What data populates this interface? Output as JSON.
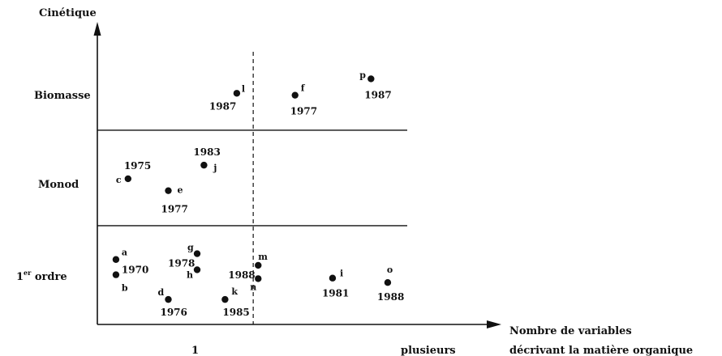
{
  "chart_data": {
    "type": "scatter",
    "title": "",
    "ylabel": "Cinétique",
    "xlabel": [
      "Nombre de variables",
      "décrivant la matière organique"
    ],
    "x_categories": [
      "1",
      "plusieurs"
    ],
    "y_categories": [
      {
        "label": "Biomasse"
      },
      {
        "label": "Monod"
      },
      {
        "label": "1",
        "sup": "er",
        "rest": " ordre"
      }
    ],
    "xlim": [
      0,
      10
    ],
    "ylim": [
      0,
      10
    ],
    "dividers": {
      "x": [
        5.03
      ],
      "y": [
        3.56,
        7.0
      ]
    },
    "points": [
      {
        "id": "l",
        "year": "1987",
        "x": 4.5,
        "y": 8.33,
        "year_dx": -34,
        "year_dy": 20,
        "id_dx": 6,
        "id_dy": -2
      },
      {
        "id": "f",
        "year": "1977",
        "x": 6.38,
        "y": 8.26,
        "year_dx": -6,
        "year_dy": 24,
        "id_dx": 7,
        "id_dy": -5
      },
      {
        "id": "p",
        "year": "1987",
        "x": 8.83,
        "y": 8.85,
        "year_dx": -8,
        "year_dy": 24,
        "id_dx": -14,
        "id_dy": -1
      },
      {
        "id": "j",
        "year": "1983",
        "x": 3.44,
        "y": 5.74,
        "year_dx": -13,
        "year_dy": -12,
        "id_dx": 12,
        "id_dy": 7
      },
      {
        "id": "c",
        "year": "1975",
        "x": 0.99,
        "y": 5.25,
        "year_dx": -5,
        "year_dy": -12,
        "id_dx": -15,
        "id_dy": 5
      },
      {
        "id": "e",
        "year": "1977",
        "x": 2.29,
        "y": 4.82,
        "year_dx": -9,
        "year_dy": 27,
        "id_dx": 11,
        "id_dy": 3
      },
      {
        "id": "a",
        "year": "",
        "x": 0.6,
        "y": 2.34,
        "year_dx": 0,
        "year_dy": 0,
        "id_dx": 7,
        "id_dy": -5
      },
      {
        "id": "b",
        "year": "1970",
        "x": 0.6,
        "y": 1.79,
        "year_dx": 7,
        "year_dy": -2,
        "id_dx": 7,
        "id_dy": 20
      },
      {
        "id": "g",
        "year": "1978",
        "x": 3.22,
        "y": 2.55,
        "year_dx": -36,
        "year_dy": 16,
        "id_dx": -12,
        "id_dy": -4
      },
      {
        "id": "h",
        "year": "",
        "x": 3.22,
        "y": 1.97,
        "year_dx": 0,
        "year_dy": 0,
        "id_dx": -13,
        "id_dy": 10
      },
      {
        "id": "m",
        "year": "1988",
        "x": 5.19,
        "y": 2.13,
        "year_dx": -37,
        "year_dy": 16,
        "id_dx": 0,
        "id_dy": -7
      },
      {
        "id": "n",
        "year": "",
        "x": 5.19,
        "y": 1.65,
        "year_dx": 0,
        "year_dy": 0,
        "id_dx": -10,
        "id_dy": 14
      },
      {
        "id": "d",
        "year": "1976",
        "x": 2.29,
        "y": 0.9,
        "year_dx": -10,
        "year_dy": 20,
        "id_dx": -13,
        "id_dy": -5
      },
      {
        "id": "k",
        "year": "1985",
        "x": 4.12,
        "y": 0.9,
        "year_dx": -3,
        "year_dy": 20,
        "id_dx": 8,
        "id_dy": -6
      },
      {
        "id": "i",
        "year": "1981",
        "x": 7.59,
        "y": 1.67,
        "year_dx": -13,
        "year_dy": 23,
        "id_dx": 9,
        "id_dy": -2
      },
      {
        "id": "o",
        "year": "1988",
        "x": 9.37,
        "y": 1.51,
        "year_dx": -13,
        "year_dy": 22,
        "id_dx": -1,
        "id_dy": -12
      }
    ],
    "grid": false,
    "legend": "none"
  }
}
